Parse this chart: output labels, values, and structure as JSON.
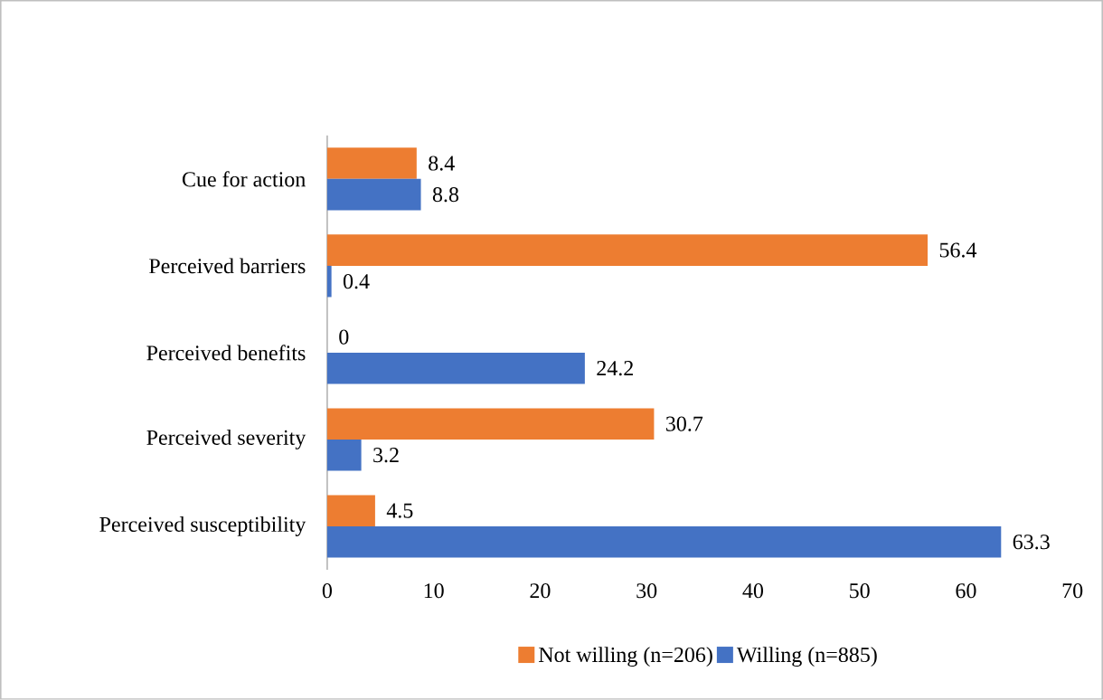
{
  "chart_data": {
    "type": "bar",
    "orientation": "horizontal",
    "categories": [
      "Cue for action",
      "Perceived barriers",
      "Perceived benefits",
      "Perceived severity",
      "Perceived susceptibility"
    ],
    "series": [
      {
        "name": "Not willing (n=206)",
        "color": "#ed7d31",
        "values": [
          8.4,
          56.4,
          0,
          30.7,
          4.5
        ]
      },
      {
        "name": "Willing (n=885)",
        "color": "#4472c4",
        "values": [
          8.8,
          0.4,
          24.2,
          3.2,
          63.3
        ]
      }
    ],
    "xlim": [
      0,
      70
    ],
    "xticks": [
      0,
      10,
      20,
      30,
      40,
      50,
      60,
      70
    ],
    "data_labels": true,
    "legend": "bottom",
    "grid": false
  }
}
